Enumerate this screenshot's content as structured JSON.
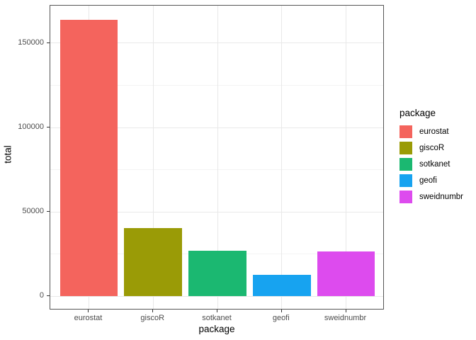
{
  "chart_data": {
    "type": "bar",
    "title": "",
    "xlabel": "package",
    "ylabel": "total",
    "legend_title": "package",
    "legend_position": "right",
    "grid": "on",
    "categories": [
      "eurostat",
      "giscoR",
      "sotkanet",
      "geofi",
      "sweidnumbr"
    ],
    "values": [
      164000,
      40600,
      27100,
      12900,
      26700
    ],
    "colors": [
      "#F4645D",
      "#9A9B06",
      "#1BB871",
      "#17A3F0",
      "#DD4BEE"
    ],
    "y_ticks": [
      0,
      50000,
      100000,
      150000
    ],
    "y_tick_labels": [
      "0",
      "50000",
      "100000",
      "150000"
    ],
    "y_minor_ticks": [
      25000,
      75000,
      125000
    ],
    "y_domain": [
      -8200,
      172200
    ],
    "ylim": [
      0,
      164000
    ]
  }
}
